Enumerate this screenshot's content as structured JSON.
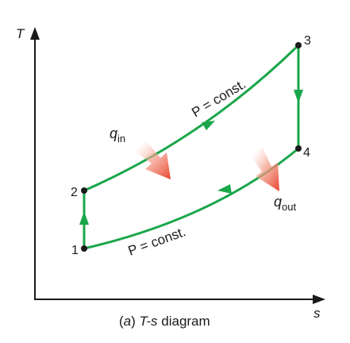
{
  "axes": {
    "y_label": "T",
    "x_label": "s"
  },
  "states": [
    {
      "id": "1",
      "label": "1"
    },
    {
      "id": "2",
      "label": "2"
    },
    {
      "id": "3",
      "label": "3"
    },
    {
      "id": "4",
      "label": "4"
    }
  ],
  "process_labels": {
    "upper": "P = const.",
    "lower": "P = const."
  },
  "heat": {
    "in_symbol": "q",
    "in_sub": "in",
    "out_symbol": "q",
    "out_sub": "out"
  },
  "caption": {
    "prefix": "(",
    "letter": "a",
    "suffix": ") ",
    "title_italic": "T-s",
    "title_rest": " diagram"
  },
  "colors": {
    "process_line": "#1aa64a",
    "axes": "#1a1a1a",
    "heat_arrow": "#e8432c"
  }
}
